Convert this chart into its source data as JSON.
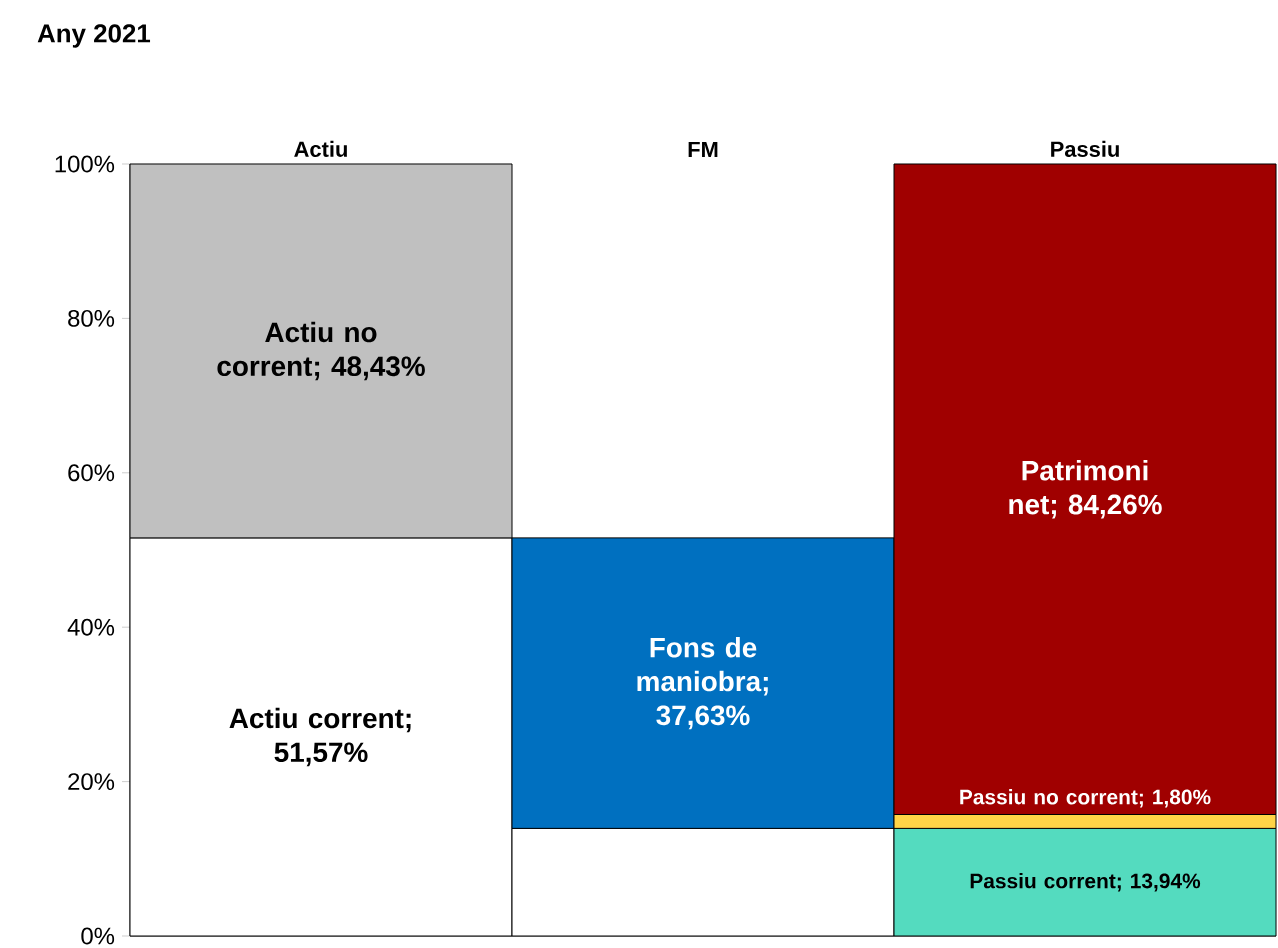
{
  "chart_data": {
    "type": "bar",
    "title": "Any 2021",
    "stacked": true,
    "categories": [
      "Actiu",
      "FM",
      "Passiu"
    ],
    "series": [
      {
        "colors": [
          "#ffffff",
          "#ffffff",
          "#54dbbf"
        ],
        "values": [
          51.57,
          13.94,
          13.94
        ],
        "value_labels": [
          "Actiu corrent; 51,57%",
          null,
          "Passiu corrent; 13,94%"
        ]
      },
      {
        "colors": [
          "#c0c0c0",
          "#0070c0",
          "#ffd447"
        ],
        "values": [
          48.43,
          37.63,
          1.8
        ],
        "value_labels": [
          "Actiu no corrent; 48,43%",
          "Fons de maniobra; 37,63%",
          "Passiu no corrent; 1,80%"
        ]
      },
      {
        "colors": [
          "#a00000",
          "#a00000",
          "#a00000"
        ],
        "values": [
          null,
          null,
          84.26
        ],
        "value_labels": [
          null,
          null,
          "Patrimoni net; 84,26%"
        ]
      }
    ],
    "ylim": [
      0,
      100
    ],
    "yticks": [
      {
        "value": 0,
        "label": "0%"
      },
      {
        "value": 20,
        "label": "20%"
      },
      {
        "value": 40,
        "label": "40%"
      },
      {
        "value": 60,
        "label": "60%"
      },
      {
        "value": 80,
        "label": "80%"
      },
      {
        "value": 100,
        "label": "100%"
      }
    ],
    "grid": false
  }
}
